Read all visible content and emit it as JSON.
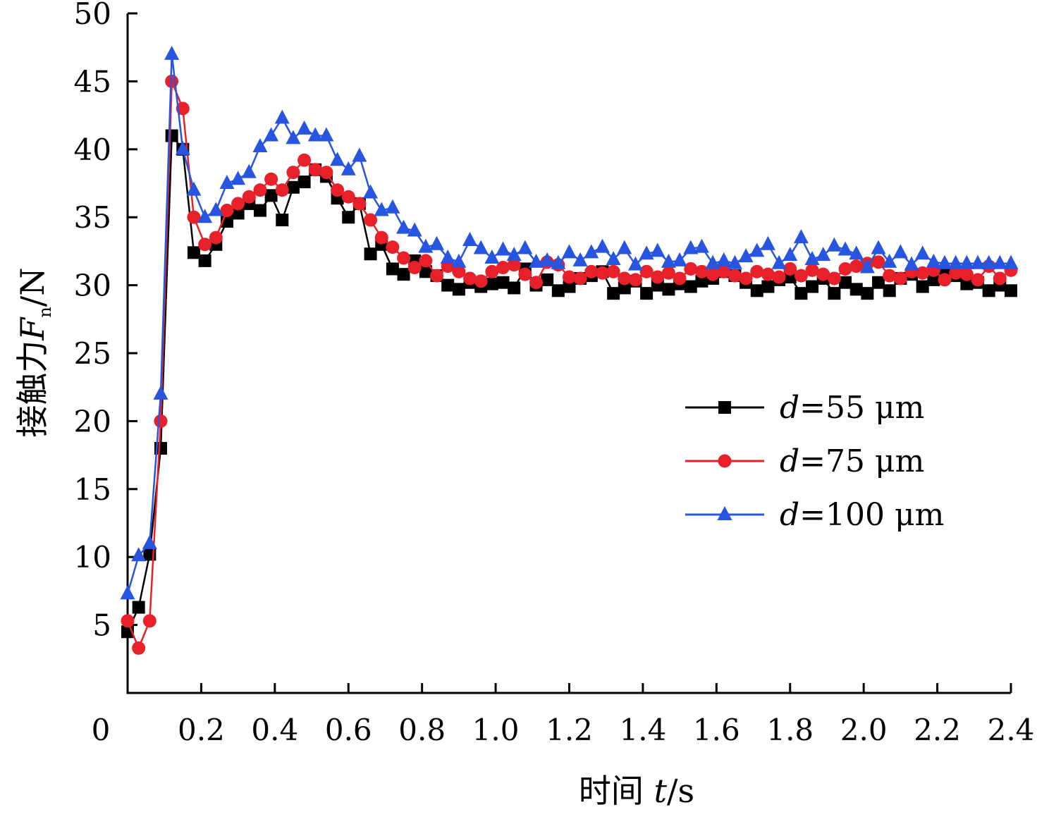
{
  "chart_data": {
    "type": "line",
    "xlabel": {
      "main": "时间 ",
      "var": "t",
      "unit": "/s"
    },
    "ylabel": {
      "main": "接触力",
      "var": "F",
      "sub": "n",
      "unit": "/N"
    },
    "xlim": [
      0,
      2.4
    ],
    "ylim": [
      0,
      50
    ],
    "x_ticks": [
      "0.2",
      "0.4",
      "0.6",
      "0.8",
      "1.0",
      "1.2",
      "1.4",
      "1.6",
      "1.8",
      "2.0",
      "2.2",
      "2.4"
    ],
    "x_origin_label": "0",
    "y_ticks": [
      5,
      10,
      15,
      20,
      25,
      30,
      35,
      40,
      45,
      50
    ],
    "grid": false,
    "legend_position": "right-middle",
    "series": [
      {
        "name": "=55 μm",
        "name_var": "d",
        "color": "#000000",
        "marker": "square",
        "x": [
          0.0,
          0.03,
          0.06,
          0.09,
          0.12,
          0.15,
          0.18,
          0.21,
          0.24,
          0.27,
          0.3,
          0.33,
          0.36,
          0.39,
          0.42,
          0.45,
          0.48,
          0.51,
          0.54,
          0.57,
          0.6,
          0.63,
          0.66,
          0.69,
          0.72,
          0.75,
          0.78,
          0.81,
          0.84,
          0.87,
          0.9,
          0.93,
          0.96,
          0.99,
          1.02,
          1.05,
          1.08,
          1.11,
          1.14,
          1.17,
          1.2,
          1.23,
          1.26,
          1.29,
          1.32,
          1.35,
          1.38,
          1.41,
          1.44,
          1.47,
          1.5,
          1.53,
          1.56,
          1.59,
          1.62,
          1.65,
          1.68,
          1.71,
          1.74,
          1.77,
          1.8,
          1.83,
          1.86,
          1.89,
          1.92,
          1.95,
          1.98,
          2.01,
          2.04,
          2.07,
          2.1,
          2.13,
          2.16,
          2.19,
          2.22,
          2.25,
          2.28,
          2.31,
          2.34,
          2.37,
          2.4
        ],
        "y": [
          4.5,
          6.3,
          10.2,
          18.0,
          41.0,
          40.0,
          32.4,
          31.8,
          33.0,
          34.7,
          35.3,
          36.0,
          35.5,
          36.6,
          34.8,
          37.2,
          37.6,
          38.5,
          38.0,
          36.4,
          35.0,
          36.0,
          32.3,
          33.0,
          31.2,
          30.8,
          31.8,
          31.0,
          30.7,
          30.0,
          29.7,
          30.2,
          29.9,
          30.1,
          30.2,
          29.8,
          31.2,
          30.0,
          30.4,
          29.6,
          29.9,
          30.5,
          30.7,
          31.0,
          29.4,
          29.8,
          30.3,
          29.4,
          30.0,
          29.7,
          30.1,
          29.9,
          30.3,
          30.5,
          31.0,
          30.7,
          30.2,
          29.6,
          29.9,
          30.4,
          30.6,
          29.4,
          29.9,
          30.5,
          29.4,
          30.2,
          29.7,
          29.4,
          30.2,
          29.6,
          30.5,
          30.8,
          29.9,
          30.4,
          30.8,
          30.7,
          30.1,
          30.2,
          29.6,
          30.0,
          29.6
        ]
      },
      {
        "name": "=75 μm",
        "name_var": "d",
        "color": "#e8202a",
        "marker": "circle",
        "x": [
          0.0,
          0.03,
          0.06,
          0.09,
          0.12,
          0.15,
          0.18,
          0.21,
          0.24,
          0.27,
          0.3,
          0.33,
          0.36,
          0.39,
          0.42,
          0.45,
          0.48,
          0.51,
          0.54,
          0.57,
          0.6,
          0.63,
          0.66,
          0.69,
          0.72,
          0.75,
          0.78,
          0.81,
          0.84,
          0.87,
          0.9,
          0.93,
          0.96,
          0.99,
          1.02,
          1.05,
          1.08,
          1.11,
          1.14,
          1.17,
          1.2,
          1.23,
          1.26,
          1.29,
          1.32,
          1.35,
          1.38,
          1.41,
          1.44,
          1.47,
          1.5,
          1.53,
          1.56,
          1.59,
          1.62,
          1.65,
          1.68,
          1.71,
          1.74,
          1.77,
          1.8,
          1.83,
          1.86,
          1.89,
          1.92,
          1.95,
          1.98,
          2.01,
          2.04,
          2.07,
          2.1,
          2.13,
          2.16,
          2.19,
          2.22,
          2.25,
          2.28,
          2.31,
          2.34,
          2.37,
          2.4
        ],
        "y": [
          5.3,
          3.3,
          5.3,
          20.0,
          45.0,
          43.0,
          35.0,
          33.0,
          33.5,
          35.5,
          36.0,
          36.5,
          37.0,
          37.8,
          37.0,
          38.3,
          39.2,
          38.5,
          38.3,
          37.0,
          36.5,
          36.0,
          34.8,
          33.5,
          32.8,
          32.0,
          31.3,
          31.8,
          30.7,
          31.4,
          31.0,
          30.5,
          30.3,
          31.0,
          31.3,
          31.5,
          30.8,
          30.2,
          31.7,
          31.5,
          30.6,
          30.5,
          31.0,
          30.9,
          31.0,
          30.5,
          30.4,
          31.0,
          30.6,
          30.9,
          30.5,
          31.2,
          31.0,
          30.8,
          31.0,
          30.7,
          30.5,
          31.0,
          30.8,
          30.6,
          31.2,
          30.7,
          31.1,
          30.8,
          30.5,
          31.2,
          31.4,
          31.6,
          31.7,
          30.7,
          30.5,
          31.0,
          30.9,
          31.1,
          30.4,
          30.9,
          30.8,
          30.4,
          31.4,
          30.5,
          31.1
        ]
      },
      {
        "name": "=100 μm",
        "name_var": "d",
        "color": "#2855e0",
        "marker": "triangle",
        "x": [
          0.0,
          0.03,
          0.06,
          0.09,
          0.12,
          0.15,
          0.18,
          0.21,
          0.24,
          0.27,
          0.3,
          0.33,
          0.36,
          0.39,
          0.42,
          0.45,
          0.48,
          0.51,
          0.54,
          0.57,
          0.6,
          0.63,
          0.66,
          0.69,
          0.72,
          0.75,
          0.78,
          0.81,
          0.84,
          0.87,
          0.9,
          0.93,
          0.96,
          0.99,
          1.02,
          1.05,
          1.08,
          1.11,
          1.14,
          1.17,
          1.2,
          1.23,
          1.26,
          1.29,
          1.32,
          1.35,
          1.38,
          1.41,
          1.44,
          1.47,
          1.5,
          1.53,
          1.56,
          1.59,
          1.62,
          1.65,
          1.68,
          1.71,
          1.74,
          1.77,
          1.8,
          1.83,
          1.86,
          1.89,
          1.92,
          1.95,
          1.98,
          2.01,
          2.04,
          2.07,
          2.1,
          2.13,
          2.16,
          2.19,
          2.22,
          2.25,
          2.28,
          2.31,
          2.34,
          2.37,
          2.4
        ],
        "y": [
          7.3,
          10.1,
          11.0,
          22.0,
          47.0,
          40.0,
          37.0,
          35.0,
          35.5,
          37.5,
          37.8,
          38.3,
          40.2,
          41.0,
          42.3,
          40.8,
          41.5,
          41.0,
          41.0,
          39.2,
          38.5,
          39.5,
          36.8,
          35.5,
          35.7,
          34.2,
          34.0,
          32.8,
          33.0,
          32.0,
          31.7,
          33.3,
          32.7,
          32.0,
          32.6,
          32.2,
          32.7,
          31.7,
          31.8,
          31.6,
          32.4,
          31.8,
          32.4,
          32.8,
          31.9,
          32.7,
          31.5,
          32.3,
          32.5,
          31.7,
          31.8,
          32.7,
          32.8,
          31.6,
          31.8,
          31.6,
          32.1,
          32.5,
          33.0,
          31.6,
          32.2,
          33.5,
          31.9,
          32.2,
          32.9,
          32.6,
          32.3,
          31.3,
          32.7,
          31.7,
          32.4,
          31.5,
          32.3,
          31.7,
          31.6,
          31.6,
          31.6,
          31.6,
          31.6,
          31.6,
          31.6
        ]
      }
    ]
  }
}
